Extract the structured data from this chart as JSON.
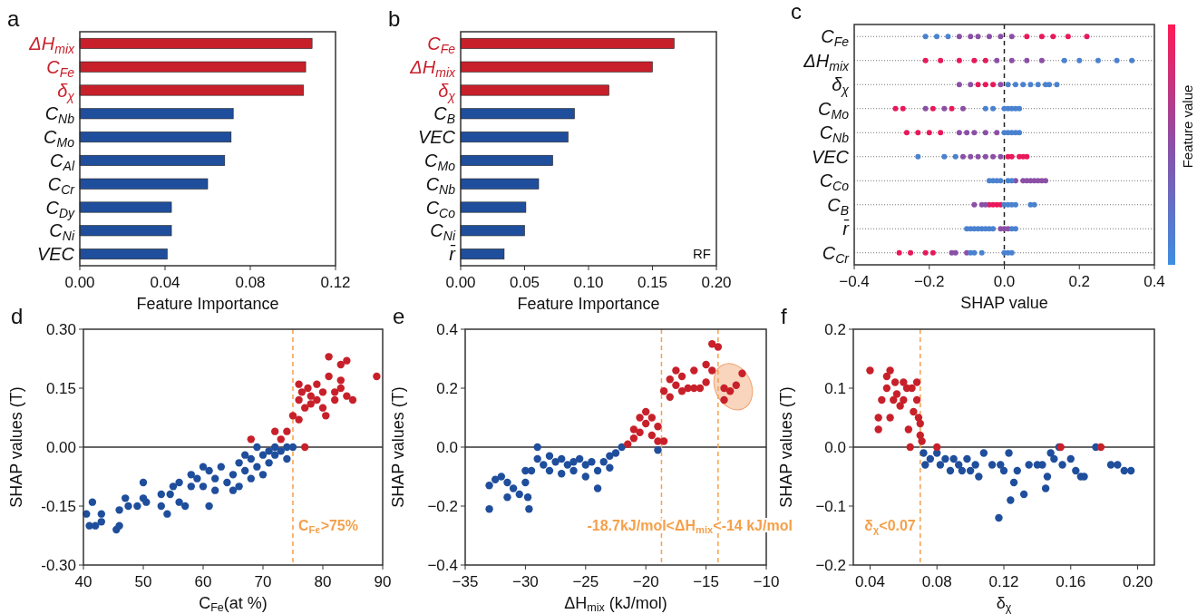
{
  "chart_data": [
    {
      "type": "bar",
      "title": "a",
      "orientation": "horizontal",
      "categories": [
        "ΔH$_{mix}$",
        "C$_{Fe}$",
        "δ$_{χ}$",
        "C$_{Nb}$",
        "C$_{Mo}$",
        "C$_{Al}$",
        "C$_{Cr}$",
        "C$_{Dy}$",
        "C$_{Ni}$",
        "VEC"
      ],
      "values": [
        0.109,
        0.106,
        0.105,
        0.072,
        0.071,
        0.068,
        0.06,
        0.043,
        0.043,
        0.041
      ],
      "colors": [
        "#c8202a",
        "#c8202a",
        "#c8202a",
        "#1f4e9c",
        "#1f4e9c",
        "#1f4e9c",
        "#1f4e9c",
        "#1f4e9c",
        "#1f4e9c",
        "#1f4e9c"
      ],
      "xlim": [
        0,
        0.12
      ],
      "xticks": [
        {
          "value": 0,
          "label": "0.00"
        },
        {
          "value": 0.04,
          "label": "0.04"
        },
        {
          "value": 0.08,
          "label": "0.08"
        },
        {
          "value": 0.12,
          "label": "0.12"
        }
      ],
      "xlabel": "Feature Importance"
    },
    {
      "type": "bar",
      "title": "b",
      "orientation": "horizontal",
      "categories": [
        "C$_{Fe}$",
        "ΔH$_{mix}$",
        "δ$_{χ}$",
        "C$_{B}$",
        "VEC",
        "C$_{Mo}$",
        "C$_{Nb}$",
        "C$_{Co}$",
        "C$_{Ni}$",
        "r̄"
      ],
      "values": [
        0.167,
        0.15,
        0.116,
        0.089,
        0.084,
        0.072,
        0.061,
        0.051,
        0.05,
        0.034
      ],
      "colors": [
        "#c8202a",
        "#c8202a",
        "#c8202a",
        "#1f4e9c",
        "#1f4e9c",
        "#1f4e9c",
        "#1f4e9c",
        "#1f4e9c",
        "#1f4e9c",
        "#1f4e9c"
      ],
      "xlim": [
        0,
        0.2
      ],
      "xticks": [
        {
          "value": 0,
          "label": "0.00"
        },
        {
          "value": 0.05,
          "label": "0.05"
        },
        {
          "value": 0.1,
          "label": "0.10"
        },
        {
          "value": 0.15,
          "label": "0.15"
        },
        {
          "value": 0.2,
          "label": "0.20"
        }
      ],
      "xlabel": "Feature Importance",
      "annotations": [
        "RF"
      ]
    },
    {
      "type": "scatter",
      "title": "c",
      "orientation": "horizontal",
      "categories": [
        "C$_{Fe}$",
        "ΔH$_{mix}$",
        "δ$_{χ}$",
        "C$_{Mo}$",
        "C$_{Nb}$",
        "VEC",
        "C$_{Co}$",
        "C$_{B}$",
        "r̄",
        "C$_{Cr}$"
      ],
      "xlim": [
        -0.4,
        0.4
      ],
      "xticks": [
        {
          "value": -0.4,
          "label": "−0.4"
        },
        {
          "value": -0.2,
          "label": "−0.2"
        },
        {
          "value": 0,
          "label": "0.0"
        },
        {
          "value": 0.2,
          "label": "0.2"
        },
        {
          "value": 0.4,
          "label": "0.4"
        }
      ],
      "xlabel": "SHAP value",
      "clabel": "Feature value",
      "grid": "y",
      "ref_lines": [
        {
          "axis": "x",
          "value": 0,
          "color": "#222222",
          "line_style": "dashed"
        }
      ],
      "series": [
        {
          "color": "#e8185a",
          "x": [
            "C$_{Fe}$",
            "C$_{Fe}$",
            "C$_{Fe}$",
            "C$_{Fe}$",
            "C$_{Fe}$",
            "ΔH$_{mix}$",
            "ΔH$_{mix}$",
            "ΔH$_{mix}$",
            "ΔH$_{mix}$",
            "ΔH$_{mix}$",
            "δ$_{χ}$",
            "δ$_{χ}$",
            "δ$_{χ}$",
            "C$_{Mo}$",
            "C$_{Mo}$",
            "C$_{Mo}$",
            "C$_{Mo}$",
            "C$_{Nb}$",
            "C$_{Nb}$",
            "C$_{Nb}$",
            "C$_{Nb}$",
            "VEC",
            "VEC",
            "VEC",
            "VEC",
            "VEC",
            "C$_{B}$",
            "C$_{B}$",
            "C$_{B}$",
            "C$_{B}$",
            "C$_{Cr}$",
            "C$_{Cr}$",
            "C$_{Cr}$",
            "C$_{Cr}$"
          ],
          "values": [
            0.06,
            0.1,
            0.13,
            0.17,
            0.22,
            -0.21,
            -0.17,
            -0.12,
            -0.08,
            -0.05,
            -0.07,
            -0.05,
            -0.03,
            -0.29,
            -0.27,
            -0.19,
            -0.14,
            -0.26,
            -0.23,
            -0.2,
            -0.17,
            0.01,
            0.02,
            0.04,
            0.05,
            0.06,
            -0.04,
            -0.03,
            -0.02,
            -0.01,
            -0.28,
            -0.25,
            -0.21,
            -0.19
          ]
        },
        {
          "color": "#8b4fa6",
          "x": [
            "C$_{Fe}$",
            "C$_{Fe}$",
            "C$_{Fe}$",
            "C$_{Fe}$",
            "C$_{Fe}$",
            "C$_{Fe}$",
            "ΔH$_{mix}$",
            "ΔH$_{mix}$",
            "ΔH$_{mix}$",
            "ΔH$_{mix}$",
            "δ$_{χ}$",
            "δ$_{χ}$",
            "δ$_{χ}$",
            "C$_{Mo}$",
            "C$_{Mo}$",
            "C$_{Mo}$",
            "C$_{Nb}$",
            "C$_{Nb}$",
            "C$_{Nb}$",
            "C$_{Nb}$",
            "C$_{Nb}$",
            "VEC",
            "VEC",
            "VEC",
            "VEC",
            "VEC",
            "VEC",
            "C$_{Co}$",
            "C$_{Co}$",
            "C$_{Co}$",
            "C$_{Co}$",
            "C$_{Co}$",
            "C$_{Co}$",
            "C$_{Co}$",
            "C$_{Co}$",
            "C$_{B}$",
            "C$_{B}$",
            "C$_{B}$",
            "r̄",
            "r̄",
            "r̄",
            "C$_{Cr}$",
            "C$_{Cr}$",
            "C$_{Cr}$"
          ],
          "values": [
            -0.12,
            -0.09,
            -0.07,
            -0.04,
            -0.01,
            0.02,
            -0.02,
            0.02,
            0.06,
            0.1,
            -0.12,
            -0.09,
            -0.01,
            -0.21,
            -0.16,
            -0.11,
            -0.12,
            -0.1,
            -0.08,
            -0.05,
            -0.02,
            -0.11,
            -0.09,
            -0.07,
            -0.05,
            -0.03,
            -0.01,
            0.03,
            0.05,
            0.06,
            0.07,
            0.08,
            0.09,
            0.1,
            0.11,
            -0.08,
            -0.06,
            -0.05,
            -0.01,
            0.0,
            0.01,
            -0.14,
            -0.13,
            -0.1
          ]
        },
        {
          "color": "#4a82d0",
          "x": [
            "C$_{Fe}$",
            "C$_{Fe}$",
            "C$_{Fe}$",
            "ΔH$_{mix}$",
            "ΔH$_{mix}$",
            "ΔH$_{mix}$",
            "ΔH$_{mix}$",
            "ΔH$_{mix}$",
            "δ$_{χ}$",
            "δ$_{χ}$",
            "δ$_{χ}$",
            "δ$_{χ}$",
            "δ$_{χ}$",
            "δ$_{χ}$",
            "δ$_{χ}$",
            "δ$_{χ}$",
            "C$_{Mo}$",
            "C$_{Mo}$",
            "C$_{Mo}$",
            "C$_{Mo}$",
            "C$_{Mo}$",
            "C$_{Mo}$",
            "C$_{Mo}$",
            "C$_{Nb}$",
            "C$_{Nb}$",
            "C$_{Nb}$",
            "C$_{Nb}$",
            "C$_{Nb}$",
            "VEC",
            "VEC",
            "VEC",
            "C$_{Co}$",
            "C$_{Co}$",
            "C$_{Co}$",
            "C$_{Co}$",
            "C$_{Co}$",
            "C$_{Co}$",
            "C$_{B}$",
            "C$_{B}$",
            "C$_{B}$",
            "C$_{B}$",
            "C$_{B}$",
            "C$_{B}$",
            "r̄",
            "r̄",
            "r̄",
            "r̄",
            "r̄",
            "r̄",
            "r̄",
            "r̄",
            "r̄",
            "r̄",
            "C$_{Cr}$",
            "C$_{Cr}$",
            "C$_{Cr}$",
            "C$_{Cr}$",
            "C$_{Cr}$",
            "C$_{Cr}$"
          ],
          "values": [
            -0.21,
            -0.18,
            -0.15,
            0.16,
            0.2,
            0.25,
            0.3,
            0.34,
            0.01,
            0.03,
            0.05,
            0.07,
            0.09,
            0.11,
            0.12,
            0.14,
            -0.05,
            -0.03,
            0.0,
            0.01,
            0.02,
            0.03,
            0.04,
            0.0,
            0.01,
            0.02,
            0.03,
            0.04,
            -0.23,
            -0.16,
            -0.13,
            -0.04,
            -0.03,
            -0.02,
            -0.01,
            0.01,
            0.02,
            0.0,
            0.01,
            0.02,
            0.03,
            0.07,
            0.08,
            -0.1,
            -0.09,
            -0.08,
            -0.07,
            -0.06,
            -0.05,
            -0.04,
            -0.03,
            0.02,
            0.03,
            -0.09,
            -0.08,
            -0.06,
            0.0,
            0.01,
            0.02
          ]
        }
      ]
    },
    {
      "type": "scatter",
      "title": "d",
      "xlim": [
        40,
        90
      ],
      "ylim": [
        -0.3,
        0.3
      ],
      "xticks": [
        40,
        50,
        60,
        70,
        80,
        90
      ],
      "yticks": [
        {
          "value": -0.3,
          "label": "-0.30"
        },
        {
          "value": -0.15,
          "label": "-0.15"
        },
        {
          "value": 0,
          "label": "0.00"
        },
        {
          "value": 0.15,
          "label": "0.15"
        },
        {
          "value": 0.3,
          "label": "0.30"
        }
      ],
      "xlabel": "C$_{Fe}$(at %)",
      "ylabel": "SHAP values (T)",
      "annotations": [
        "C$_{Fe}$>75%"
      ],
      "ref_lines": [
        {
          "axis": "y",
          "value": 0,
          "color": "#333333"
        },
        {
          "axis": "x",
          "value": 75,
          "color": "#f5a04a",
          "line_style": "dashed"
        }
      ],
      "series": [
        {
          "color": "#1f4e9c",
          "x": [
            40.5,
            41,
            41.5,
            42,
            43,
            43,
            45.5,
            46,
            46,
            47,
            47.5,
            49,
            50,
            50,
            50.5,
            53,
            53,
            54,
            54.5,
            55,
            56,
            56,
            57,
            58,
            58,
            59,
            60,
            60,
            61,
            61,
            62,
            62,
            63,
            64,
            65,
            65,
            66,
            66,
            67,
            67,
            68,
            68,
            69,
            69,
            70,
            70,
            71,
            71,
            72,
            72,
            73,
            74,
            74,
            75
          ],
          "values": [
            -0.17,
            -0.2,
            -0.14,
            -0.2,
            -0.17,
            -0.19,
            -0.21,
            -0.2,
            -0.16,
            -0.13,
            -0.15,
            -0.15,
            -0.09,
            -0.13,
            -0.14,
            -0.15,
            -0.12,
            -0.17,
            -0.12,
            -0.1,
            -0.14,
            -0.09,
            -0.15,
            -0.07,
            -0.1,
            -0.08,
            -0.05,
            -0.1,
            -0.15,
            -0.06,
            -0.08,
            -0.11,
            -0.05,
            -0.09,
            -0.07,
            -0.11,
            -0.04,
            -0.1,
            -0.02,
            -0.06,
            -0.08,
            -0.03,
            0,
            -0.05,
            -0.02,
            -0.07,
            -0.01,
            -0.04,
            0,
            -0.02,
            -0.01,
            0,
            -0.03,
            0
          ]
        },
        {
          "color": "#c8202a",
          "x": [
            68,
            72,
            73,
            74,
            75,
            76,
            77,
            76,
            76,
            76.5,
            77,
            77.5,
            78,
            78,
            79,
            79,
            80,
            80,
            80.5,
            81,
            81,
            82,
            82,
            83,
            83,
            83,
            84,
            84,
            85,
            89
          ],
          "values": [
            0.02,
            0.04,
            0.02,
            0.04,
            0.08,
            0.07,
            0,
            0.16,
            0.12,
            0.14,
            0.1,
            0.15,
            0.13,
            0.11,
            0.16,
            0.12,
            0.14,
            0.1,
            0.08,
            0.18,
            0.23,
            0.12,
            0.14,
            0.21,
            0.17,
            0.15,
            0.13,
            0.22,
            0.12,
            0.18
          ]
        }
      ]
    },
    {
      "type": "scatter",
      "title": "e",
      "xlim": [
        -35,
        -10
      ],
      "ylim": [
        -0.4,
        0.4
      ],
      "xticks": [
        {
          "value": -35,
          "label": "−35"
        },
        {
          "value": -30,
          "label": "−30"
        },
        {
          "value": -25,
          "label": "−25"
        },
        {
          "value": -20,
          "label": "−20"
        },
        {
          "value": -15,
          "label": "−15"
        },
        {
          "value": -10,
          "label": "−10"
        }
      ],
      "yticks": [
        {
          "value": -0.4,
          "label": "−0.4"
        },
        {
          "value": -0.2,
          "label": "−0.2"
        },
        {
          "value": 0,
          "label": "0.0"
        },
        {
          "value": 0.2,
          "label": "0.2"
        },
        {
          "value": 0.4,
          "label": "0.4"
        }
      ],
      "xlabel": "ΔH$_{mix}$ (kJ/mol)",
      "ylabel": "SHAP values (T)",
      "annotations": [
        "-18.7kJ/mol<ΔH$_{mix}$<-14 kJ/mol"
      ],
      "ref_lines": [
        {
          "axis": "y",
          "value": 0,
          "color": "#333333"
        },
        {
          "axis": "x",
          "value": -18.7,
          "color": "#f5a04a",
          "line_style": "dashed"
        },
        {
          "axis": "x",
          "value": -14,
          "color": "#f5a04a",
          "line_style": "dashed"
        }
      ],
      "series": [
        {
          "color": "#1f4e9c",
          "x": [
            -33,
            -33,
            -32.5,
            -32,
            -31.5,
            -31.5,
            -31,
            -30.5,
            -30,
            -30,
            -29.8,
            -29.7,
            -29.5,
            -29,
            -29,
            -28.5,
            -28,
            -28,
            -27.5,
            -27,
            -27,
            -26.5,
            -26,
            -26,
            -25.5,
            -25,
            -25,
            -24.5,
            -24,
            -24,
            -23.5,
            -23,
            -23,
            -22.5,
            -22,
            -19
          ],
          "values": [
            -0.13,
            -0.21,
            -0.11,
            -0.1,
            -0.12,
            -0.17,
            -0.14,
            -0.16,
            -0.08,
            -0.12,
            -0.17,
            -0.21,
            -0.08,
            0,
            -0.04,
            -0.06,
            -0.03,
            -0.08,
            -0.05,
            -0.04,
            -0.09,
            -0.06,
            -0.05,
            -0.08,
            -0.04,
            -0.06,
            -0.1,
            -0.05,
            -0.08,
            -0.14,
            -0.05,
            -0.03,
            -0.07,
            -0.02,
            0,
            -0.01
          ]
        },
        {
          "color": "#c8202a",
          "x": [
            -21.5,
            -21,
            -21,
            -20.5,
            -20.5,
            -20,
            -20,
            -19.5,
            -19.5,
            -19,
            -19,
            -18.5,
            -18.5,
            -18,
            -18,
            -17.5,
            -17.5,
            -17,
            -17,
            -16.5,
            -16,
            -16,
            -15.5,
            -15,
            -15,
            -14.5,
            -14.5,
            -14,
            -13.5,
            -13.5,
            -13,
            -12.5,
            -12
          ],
          "values": [
            0.01,
            0.03,
            0.06,
            0.05,
            0.1,
            0.08,
            0.12,
            0.04,
            0.1,
            0.02,
            0.07,
            0.02,
            0.19,
            0.23,
            0.17,
            0.21,
            0.26,
            0.19,
            0.24,
            0.2,
            0.2,
            0.26,
            0.2,
            0.22,
            0.28,
            0.35,
            0.26,
            0.34,
            0.2,
            0.16,
            0.19,
            0.21,
            0.25
          ]
        }
      ]
    },
    {
      "type": "scatter",
      "title": "f",
      "xlim": [
        0.03,
        0.21
      ],
      "ylim": [
        -0.2,
        0.2
      ],
      "xticks": [
        {
          "value": 0.04,
          "label": "0.04"
        },
        {
          "value": 0.08,
          "label": "0.08"
        },
        {
          "value": 0.12,
          "label": "0.12"
        },
        {
          "value": 0.16,
          "label": "0.16"
        },
        {
          "value": 0.2,
          "label": "0.20"
        }
      ],
      "yticks": [
        {
          "value": -0.2,
          "label": "−0.2"
        },
        {
          "value": -0.1,
          "label": "−0.1"
        },
        {
          "value": 0,
          "label": "0.0"
        },
        {
          "value": 0.1,
          "label": "0.1"
        },
        {
          "value": 0.2,
          "label": "0.2"
        }
      ],
      "xlabel": "δ$_{χ}$",
      "ylabel": "SHAP values (T)",
      "annotations": [
        "δ$_{χ}$<0.07"
      ],
      "ref_lines": [
        {
          "axis": "y",
          "value": 0,
          "color": "#333333"
        },
        {
          "axis": "x",
          "value": 0.07,
          "color": "#f5a04a",
          "line_style": "dashed"
        }
      ],
      "series": [
        {
          "color": "#1f4e9c",
          "x": [
            0.072,
            0.073,
            0.076,
            0.08,
            0.082,
            0.085,
            0.088,
            0.09,
            0.093,
            0.095,
            0.098,
            0.1,
            0.103,
            0.105,
            0.108,
            0.113,
            0.117,
            0.118,
            0.12,
            0.123,
            0.124,
            0.126,
            0.128,
            0.132,
            0.135,
            0.14,
            0.143,
            0.145,
            0.146,
            0.148,
            0.15,
            0.153,
            0.155,
            0.16,
            0.163,
            0.166,
            0.168,
            0.175,
            0.184,
            0.188,
            0.192,
            0.196
          ],
          "values": [
            -0.01,
            -0.03,
            -0.02,
            -0.01,
            -0.03,
            -0.02,
            -0.04,
            -0.02,
            -0.03,
            -0.04,
            -0.02,
            -0.04,
            -0.03,
            -0.05,
            -0.01,
            -0.03,
            -0.12,
            -0.03,
            -0.04,
            -0.01,
            -0.09,
            -0.06,
            -0.04,
            -0.08,
            -0.03,
            -0.03,
            -0.03,
            -0.07,
            -0.05,
            -0.01,
            -0.02,
            0,
            -0.03,
            -0.02,
            -0.04,
            -0.05,
            -0.05,
            0,
            -0.03,
            -0.03,
            -0.04,
            -0.04
          ]
        },
        {
          "color": "#c8202a",
          "x": [
            0.04,
            0.045,
            0.045,
            0.047,
            0.05,
            0.05,
            0.052,
            0.052,
            0.054,
            0.055,
            0.056,
            0.058,
            0.06,
            0.06,
            0.062,
            0.063,
            0.064,
            0.065,
            0.066,
            0.068,
            0.068,
            0.069,
            0.07,
            0.07,
            0.071,
            0.08,
            0.154,
            0.178
          ],
          "values": [
            0.13,
            0.05,
            0.03,
            0.08,
            0.1,
            0.12,
            0.13,
            0.05,
            0.08,
            0.11,
            0.09,
            0.07,
            0.11,
            0.08,
            0.1,
            0.03,
            0,
            0.1,
            0.06,
            0.11,
            0.08,
            0.05,
            0.04,
            0.02,
            0.01,
            0,
            0,
            0
          ]
        }
      ]
    }
  ]
}
